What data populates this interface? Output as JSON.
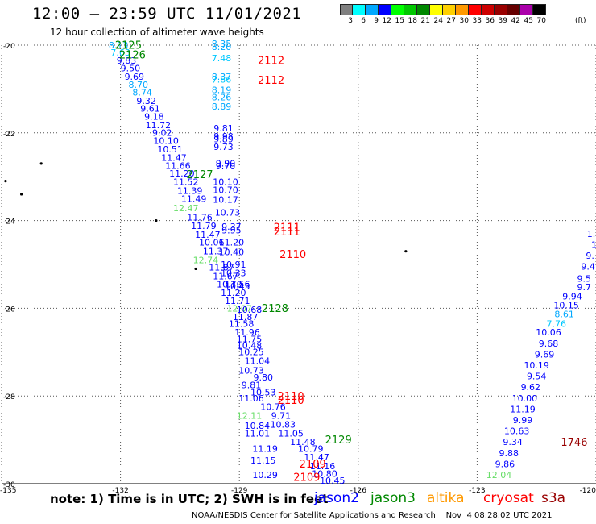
{
  "header": {
    "title": "12:00 – 23:59 UTC 11/01/2021",
    "subtitle": "12 hour collection of altimeter wave heights"
  },
  "legend": {
    "colors": [
      "#808080",
      "#00ffff",
      "#00a8ff",
      "#0000ff",
      "#00ff00",
      "#00c800",
      "#008800",
      "#ffff00",
      "#ffd000",
      "#ff9900",
      "#ff0000",
      "#cc0000",
      "#990000",
      "#660000",
      "#aa00aa",
      "#000000"
    ],
    "labels": [
      "3",
      "6",
      "9",
      "12",
      "15",
      "18",
      "21",
      "24",
      "27",
      "30",
      "33",
      "36",
      "39",
      "42",
      "45",
      "70"
    ],
    "units": "(ft)"
  },
  "axes": {
    "lat_labels": [
      {
        "text": "-20",
        "lat": -20
      },
      {
        "text": "-22",
        "lat": -22
      },
      {
        "text": "-24",
        "lat": -24
      },
      {
        "text": "-26",
        "lat": -26
      },
      {
        "text": "-28",
        "lat": -28
      },
      {
        "text": "-30",
        "lat": -30
      }
    ],
    "lon_labels": [
      {
        "text": "-135",
        "lon": -135
      },
      {
        "text": "-132",
        "lon": -132
      },
      {
        "text": "-129",
        "lon": -129
      },
      {
        "text": "-126",
        "lon": -126
      },
      {
        "text": "-123",
        "lon": -123
      },
      {
        "text": "-120",
        "lon": -120
      }
    ]
  },
  "map_data": {
    "lon_range": [
      -135,
      -120
    ],
    "lat_range": [
      -30,
      -20
    ],
    "grid": "dotted",
    "islands": [
      {
        "lon": -134.0,
        "lat": -22.7
      },
      {
        "lon": -134.9,
        "lat": -23.1
      },
      {
        "lon": -134.5,
        "lat": -23.4
      },
      {
        "lon": -131.1,
        "lat": -24.0
      },
      {
        "lon": -130.1,
        "lat": -25.1
      },
      {
        "lon": -124.8,
        "lat": -24.7
      }
    ],
    "labels": [
      {
        "text": "8.13",
        "lon": -132.05,
        "lat": -20.0,
        "color": "#00a8ff"
      },
      {
        "text": "7.63",
        "lon": -132.0,
        "lat": -20.17,
        "color": "#00c8ff"
      },
      {
        "text": "9.83",
        "lon": -131.85,
        "lat": -20.35,
        "color": "#0000ff"
      },
      {
        "text": "9.50",
        "lon": -131.75,
        "lat": -20.53,
        "color": "#0000ff"
      },
      {
        "text": "9.69",
        "lon": -131.65,
        "lat": -20.72,
        "color": "#0000ff"
      },
      {
        "text": "8.70",
        "lon": -131.55,
        "lat": -20.9,
        "color": "#00a8ff"
      },
      {
        "text": "8.74",
        "lon": -131.45,
        "lat": -21.08,
        "color": "#00a8ff"
      },
      {
        "text": "9.32",
        "lon": -131.35,
        "lat": -21.27,
        "color": "#0000ff"
      },
      {
        "text": "9.61",
        "lon": -131.25,
        "lat": -21.45,
        "color": "#0000ff"
      },
      {
        "text": "9.18",
        "lon": -131.15,
        "lat": -21.63,
        "color": "#0000ff"
      },
      {
        "text": "11.72",
        "lon": -131.05,
        "lat": -21.82,
        "color": "#0000ff"
      },
      {
        "text": "9.02",
        "lon": -130.95,
        "lat": -22.0,
        "color": "#0000ff"
      },
      {
        "text": "10.10",
        "lon": -130.85,
        "lat": -22.18,
        "color": "#0000ff"
      },
      {
        "text": "10.51",
        "lon": -130.75,
        "lat": -22.37,
        "color": "#0000ff"
      },
      {
        "text": "11.47",
        "lon": -130.65,
        "lat": -22.57,
        "color": "#0000ff"
      },
      {
        "text": "11.66",
        "lon": -130.55,
        "lat": -22.75,
        "color": "#0000ff"
      },
      {
        "text": "11.20",
        "lon": -130.45,
        "lat": -22.93,
        "color": "#0000ff"
      },
      {
        "text": "11.52",
        "lon": -130.35,
        "lat": -23.12,
        "color": "#0000ff"
      },
      {
        "text": "11.39",
        "lon": -130.25,
        "lat": -23.32,
        "color": "#0000ff"
      },
      {
        "text": "11.49",
        "lon": -130.15,
        "lat": -23.5,
        "color": "#0000ff"
      },
      {
        "text": "12.47",
        "lon": -130.35,
        "lat": -23.72,
        "color": "#66dd66"
      },
      {
        "text": "11.76",
        "lon": -130.0,
        "lat": -23.93,
        "color": "#0000ff"
      },
      {
        "text": "11.79",
        "lon": -129.9,
        "lat": -24.12,
        "color": "#0000ff"
      },
      {
        "text": "11.47",
        "lon": -129.8,
        "lat": -24.32,
        "color": "#0000ff"
      },
      {
        "text": "10.06",
        "lon": -129.7,
        "lat": -24.5,
        "color": "#0000ff"
      },
      {
        "text": "11.37",
        "lon": -129.6,
        "lat": -24.7,
        "color": "#0000ff"
      },
      {
        "text": "12.74",
        "lon": -129.85,
        "lat": -24.9,
        "color": "#66dd66"
      },
      {
        "text": "11.87",
        "lon": -129.45,
        "lat": -25.07,
        "color": "#0000ff"
      },
      {
        "text": "11.67",
        "lon": -129.35,
        "lat": -25.27,
        "color": "#0000ff"
      },
      {
        "text": "10.70",
        "lon": -129.25,
        "lat": -25.45,
        "color": "#0000ff"
      },
      {
        "text": "11.20",
        "lon": -129.15,
        "lat": -25.65,
        "color": "#0000ff"
      },
      {
        "text": "11.71",
        "lon": -129.05,
        "lat": -25.83,
        "color": "#0000ff"
      },
      {
        "text": "12.07",
        "lon": -129.0,
        "lat": -26.0,
        "color": "#66dd66"
      },
      {
        "text": "11.87",
        "lon": -128.85,
        "lat": -26.2,
        "color": "#0000ff"
      },
      {
        "text": "11.58",
        "lon": -128.95,
        "lat": -26.35,
        "color": "#0000ff"
      },
      {
        "text": "11.96",
        "lon": -128.8,
        "lat": -26.55,
        "color": "#0000ff"
      },
      {
        "text": "11.75",
        "lon": -128.75,
        "lat": -26.7,
        "color": "#0000ff"
      },
      {
        "text": "10.48",
        "lon": -128.75,
        "lat": -26.85,
        "color": "#0000ff"
      },
      {
        "text": "10.25",
        "lon": -128.7,
        "lat": -27.0,
        "color": "#0000ff"
      },
      {
        "text": "11.04",
        "lon": -128.55,
        "lat": -27.2,
        "color": "#0000ff"
      },
      {
        "text": "10.73",
        "lon": -128.7,
        "lat": -27.42,
        "color": "#0000ff"
      },
      {
        "text": "9.80",
        "lon": -128.4,
        "lat": -27.58,
        "color": "#0000ff"
      },
      {
        "text": "9.81",
        "lon": -128.7,
        "lat": -27.75,
        "color": "#0000ff"
      },
      {
        "text": "10.53",
        "lon": -128.4,
        "lat": -27.92,
        "color": "#0000ff"
      },
      {
        "text": "11.06",
        "lon": -128.7,
        "lat": -28.05,
        "color": "#0000ff"
      },
      {
        "text": "10.76",
        "lon": -128.15,
        "lat": -28.25,
        "color": "#0000ff"
      },
      {
        "text": "12.11",
        "lon": -128.75,
        "lat": -28.45,
        "color": "#66dd66"
      },
      {
        "text": "9.71",
        "lon": -127.95,
        "lat": -28.45,
        "color": "#0000ff"
      },
      {
        "text": "10.83",
        "lon": -127.9,
        "lat": -28.65,
        "color": "#0000ff"
      },
      {
        "text": "10.84",
        "lon": -128.55,
        "lat": -28.68,
        "color": "#0000ff"
      },
      {
        "text": "11.01",
        "lon": -128.55,
        "lat": -28.85,
        "color": "#0000ff"
      },
      {
        "text": "11.05",
        "lon": -127.7,
        "lat": -28.85,
        "color": "#0000ff"
      },
      {
        "text": "11.48",
        "lon": -127.4,
        "lat": -29.05,
        "color": "#0000ff"
      },
      {
        "text": "11.19",
        "lon": -128.35,
        "lat": -29.2,
        "color": "#0000ff"
      },
      {
        "text": "10.79",
        "lon": -127.2,
        "lat": -29.2,
        "color": "#0000ff"
      },
      {
        "text": "11.15",
        "lon": -128.4,
        "lat": -29.47,
        "color": "#0000ff"
      },
      {
        "text": "11.47",
        "lon": -127.05,
        "lat": -29.4,
        "color": "#0000ff"
      },
      {
        "text": "11.16",
        "lon": -126.9,
        "lat": -29.6,
        "color": "#0000ff"
      },
      {
        "text": "10.29",
        "lon": -128.35,
        "lat": -29.8,
        "color": "#0000ff"
      },
      {
        "text": "10.80",
        "lon": -126.85,
        "lat": -29.77,
        "color": "#0000ff"
      },
      {
        "text": "10.45",
        "lon": -126.65,
        "lat": -29.93,
        "color": "#0000ff"
      },
      {
        "text": "8.35",
        "lon": -129.45,
        "lat": -19.97,
        "color": "#00a8ff"
      },
      {
        "text": "8.20",
        "lon": -129.45,
        "lat": -20.04,
        "color": "#00a8ff"
      },
      {
        "text": "7.48",
        "lon": -129.45,
        "lat": -20.3,
        "color": "#00c8ff"
      },
      {
        "text": "8.37",
        "lon": -129.45,
        "lat": -20.72,
        "color": "#00a8ff"
      },
      {
        "text": "7.86",
        "lon": -129.45,
        "lat": -20.78,
        "color": "#00c8ff"
      },
      {
        "text": "8.19",
        "lon": -129.45,
        "lat": -21.02,
        "color": "#00a8ff"
      },
      {
        "text": "8.26",
        "lon": -129.45,
        "lat": -21.19,
        "color": "#00a8ff"
      },
      {
        "text": "8.89",
        "lon": -129.45,
        "lat": -21.4,
        "color": "#00a8ff"
      },
      {
        "text": "9.81",
        "lon": -129.4,
        "lat": -21.9,
        "color": "#0000ff"
      },
      {
        "text": "9.98",
        "lon": -129.4,
        "lat": -22.08,
        "color": "#0000ff"
      },
      {
        "text": "9.89",
        "lon": -129.4,
        "lat": -22.14,
        "color": "#0000ff"
      },
      {
        "text": "9.73",
        "lon": -129.4,
        "lat": -22.32,
        "color": "#0000ff"
      },
      {
        "text": "9.90",
        "lon": -129.35,
        "lat": -22.7,
        "color": "#0000ff"
      },
      {
        "text": "9.70",
        "lon": -129.35,
        "lat": -22.76,
        "color": "#0000ff"
      },
      {
        "text": "10.10",
        "lon": -129.35,
        "lat": -23.12,
        "color": "#0000ff"
      },
      {
        "text": "10.70",
        "lon": -129.35,
        "lat": -23.3,
        "color": "#0000ff"
      },
      {
        "text": "10.17",
        "lon": -129.35,
        "lat": -23.52,
        "color": "#0000ff"
      },
      {
        "text": "10.73",
        "lon": -129.3,
        "lat": -23.82,
        "color": "#0000ff"
      },
      {
        "text": "9.37",
        "lon": -129.2,
        "lat": -24.14,
        "color": "#0000ff"
      },
      {
        "text": "9.95",
        "lon": -129.2,
        "lat": -24.22,
        "color": "#0000ff"
      },
      {
        "text": "11.20",
        "lon": -129.2,
        "lat": -24.5,
        "color": "#0000ff"
      },
      {
        "text": "10.40",
        "lon": -129.2,
        "lat": -24.72,
        "color": "#0000ff"
      },
      {
        "text": "10.91",
        "lon": -129.15,
        "lat": -25.0,
        "color": "#0000ff"
      },
      {
        "text": "10.33",
        "lon": -129.15,
        "lat": -25.2,
        "color": "#0000ff"
      },
      {
        "text": "11.56",
        "lon": -129.05,
        "lat": -25.45,
        "color": "#0000ff"
      },
      {
        "text": "10.45",
        "lon": -129.05,
        "lat": -25.5,
        "color": "#0000ff"
      },
      {
        "text": "10.68",
        "lon": -128.75,
        "lat": -26.03,
        "color": "#0000ff"
      },
      {
        "text": "2125",
        "lon": -131.8,
        "lat": -20.0,
        "color": "#008800",
        "size": 13
      },
      {
        "text": "2126",
        "lon": -131.7,
        "lat": -20.22,
        "color": "#008800",
        "size": 13
      },
      {
        "text": "2127",
        "lon": -130.0,
        "lat": -22.95,
        "color": "#008800",
        "size": 13
      },
      {
        "text": "2128",
        "lon": -128.1,
        "lat": -26.0,
        "color": "#008800",
        "size": 13
      },
      {
        "text": "2129",
        "lon": -126.5,
        "lat": -29.0,
        "color": "#008800",
        "size": 13
      },
      {
        "text": "2112",
        "lon": -128.2,
        "lat": -20.35,
        "color": "#ff0000",
        "size": 13
      },
      {
        "text": "2112",
        "lon": -128.2,
        "lat": -20.8,
        "color": "#ff0000",
        "size": 13
      },
      {
        "text": "2111",
        "lon": -127.8,
        "lat": -24.15,
        "color": "#ff0000",
        "size": 13
      },
      {
        "text": "2111",
        "lon": -127.8,
        "lat": -24.25,
        "color": "#ff0000",
        "size": 13
      },
      {
        "text": "2110",
        "lon": -127.65,
        "lat": -24.77,
        "color": "#ff0000",
        "size": 13
      },
      {
        "text": "2110",
        "lon": -127.7,
        "lat": -28.0,
        "color": "#ff0000",
        "size": 13
      },
      {
        "text": "2110",
        "lon": -127.7,
        "lat": -28.1,
        "color": "#ff0000",
        "size": 13
      },
      {
        "text": "2109",
        "lon": -127.15,
        "lat": -29.55,
        "color": "#ff0000",
        "size": 13
      },
      {
        "text": "2109",
        "lon": -127.3,
        "lat": -29.85,
        "color": "#ff0000",
        "size": 13
      },
      {
        "text": "1.4",
        "lon": -120.05,
        "lat": -24.3,
        "color": "#0000ff"
      },
      {
        "text": "1",
        "lon": -120.05,
        "lat": -24.55,
        "color": "#0000ff"
      },
      {
        "text": "9.",
        "lon": -120.15,
        "lat": -24.8,
        "color": "#0000ff"
      },
      {
        "text": "9.4",
        "lon": -120.2,
        "lat": -25.05,
        "color": "#0000ff"
      },
      {
        "text": "9.5",
        "lon": -120.3,
        "lat": -25.32,
        "color": "#0000ff"
      },
      {
        "text": "9.7",
        "lon": -120.3,
        "lat": -25.52,
        "color": "#0000ff"
      },
      {
        "text": "9.94",
        "lon": -120.6,
        "lat": -25.73,
        "color": "#0000ff"
      },
      {
        "text": "10.15",
        "lon": -120.75,
        "lat": -25.93,
        "color": "#0000ff"
      },
      {
        "text": "8.61",
        "lon": -120.8,
        "lat": -26.13,
        "color": "#00a8ff"
      },
      {
        "text": "7.76",
        "lon": -121.0,
        "lat": -26.35,
        "color": "#00c8ff"
      },
      {
        "text": "10.06",
        "lon": -121.2,
        "lat": -26.55,
        "color": "#0000ff"
      },
      {
        "text": "9.68",
        "lon": -121.2,
        "lat": -26.8,
        "color": "#0000ff"
      },
      {
        "text": "9.69",
        "lon": -121.3,
        "lat": -27.05,
        "color": "#0000ff"
      },
      {
        "text": "10.19",
        "lon": -121.5,
        "lat": -27.3,
        "color": "#0000ff"
      },
      {
        "text": "9.54",
        "lon": -121.5,
        "lat": -27.55,
        "color": "#0000ff"
      },
      {
        "text": "9.62",
        "lon": -121.65,
        "lat": -27.8,
        "color": "#0000ff"
      },
      {
        "text": "10.00",
        "lon": -121.8,
        "lat": -28.05,
        "color": "#0000ff"
      },
      {
        "text": "11.19",
        "lon": -121.85,
        "lat": -28.3,
        "color": "#0000ff"
      },
      {
        "text": "9.99",
        "lon": -121.85,
        "lat": -28.55,
        "color": "#0000ff"
      },
      {
        "text": "10.63",
        "lon": -122.0,
        "lat": -28.8,
        "color": "#0000ff"
      },
      {
        "text": "9.34",
        "lon": -122.1,
        "lat": -29.05,
        "color": "#0000ff"
      },
      {
        "text": "9.88",
        "lon": -122.2,
        "lat": -29.3,
        "color": "#0000ff"
      },
      {
        "text": "9.86",
        "lon": -122.3,
        "lat": -29.55,
        "color": "#0000ff"
      },
      {
        "text": "12.04",
        "lon": -122.45,
        "lat": -29.8,
        "color": "#66dd66"
      },
      {
        "text": "1746",
        "lon": -120.55,
        "lat": -29.05,
        "color": "#990000",
        "size": 13
      }
    ]
  },
  "note": {
    "text": "note:  1) Time is in UTC; 2) SWH is in feet",
    "satellites": [
      {
        "name": "jason2",
        "color": "#0000ff"
      },
      {
        "name": "jason3",
        "color": "#008800"
      },
      {
        "name": "altika",
        "color": "#ff9900"
      },
      {
        "name": "cryosat",
        "color": "#ff0000"
      },
      {
        "name": "s3a",
        "color": "#990000"
      }
    ]
  },
  "footer": {
    "text": "NOAA/NESDIS Center for Satellite Applications and Research    Nov  4 08:28:02 UTC 2021"
  }
}
